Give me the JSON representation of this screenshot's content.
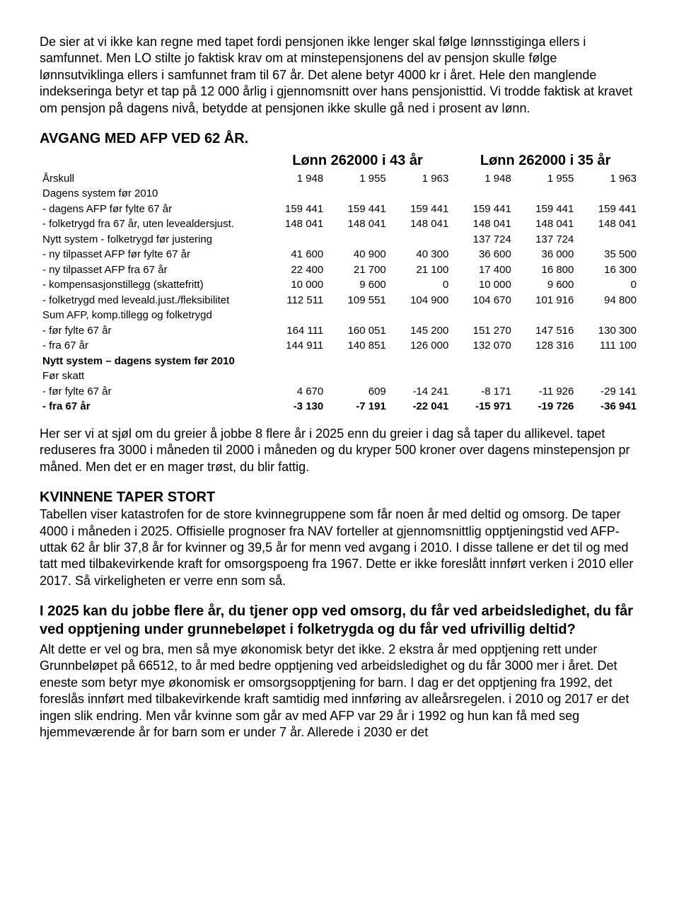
{
  "intro": "De sier at vi ikke kan regne med tapet fordi pensjonen ikke lenger skal følge lønnsstiginga ellers i samfunnet. Men LO stilte jo faktisk krav om at minstepensjonens del av pensjon skulle følge lønnsutviklinga ellers i samfunnet fram til 67 år. Det alene betyr 4000 kr i året. Hele den manglende indekseringa betyr et tap på 12 000 årlig i gjennomsnitt over hans pensjonisttid. Vi trodde faktisk at kravet om pensjon på dagens nivå, betydde at pensjonen ikke skulle gå ned i prosent av lønn.",
  "heading1": "AVGANG MED AFP VED 62 ÅR.",
  "table": {
    "group_left": "Lønn 262000 i 43 år",
    "group_right": "Lønn 262000 i 35 år",
    "years_row": {
      "label": "Årskull",
      "vals": [
        "1 948",
        "1 955",
        "1 963",
        "1 948",
        "1 955",
        "1 963"
      ]
    },
    "rows": [
      {
        "label": "Dagens system før 2010",
        "vals": [
          "",
          "",
          "",
          "",
          "",
          ""
        ],
        "bold": false
      },
      {
        "label": "- dagens AFP før fylte 67 år",
        "vals": [
          "159 441",
          "159 441",
          "159 441",
          "159 441",
          "159 441",
          "159 441"
        ],
        "bold": false
      },
      {
        "label": "- folketrygd fra 67 år, uten levealdersjust.",
        "vals": [
          "148 041",
          "148 041",
          "148 041",
          "148 041",
          "148 041",
          "148 041"
        ],
        "bold": false
      },
      {
        "label": "Nytt system - folketrygd før justering",
        "vals": [
          "",
          "",
          "",
          "137 724",
          "137 724",
          ""
        ],
        "bold": false
      },
      {
        "label": "- ny tilpasset AFP før fylte 67 år",
        "vals": [
          "41 600",
          "40 900",
          "40 300",
          "36 600",
          "36 000",
          "35 500"
        ],
        "bold": false
      },
      {
        "label": "- ny tilpasset AFP fra 67 år",
        "vals": [
          "22 400",
          "21 700",
          "21 100",
          "17 400",
          "16 800",
          "16 300"
        ],
        "bold": false
      },
      {
        "label": "- kompensasjonstillegg (skattefritt)",
        "vals": [
          "10 000",
          "9 600",
          "0",
          "10 000",
          "9 600",
          "0"
        ],
        "bold": false
      },
      {
        "label": "- folketrygd med leveald.just./fleksibilitet",
        "vals": [
          "112 511",
          "109 551",
          "104 900",
          "104 670",
          "101 916",
          "94 800"
        ],
        "bold": false
      },
      {
        "label": "Sum AFP, komp.tillegg og folketrygd",
        "vals": [
          "",
          "",
          "",
          "",
          "",
          ""
        ],
        "bold": false
      },
      {
        "label": "- før fylte 67 år",
        "vals": [
          "164 111",
          "160 051",
          "145 200",
          "151 270",
          "147 516",
          "130 300"
        ],
        "bold": false
      },
      {
        "label": "- fra 67 år",
        "vals": [
          "144 911",
          "140 851",
          "126 000",
          "132 070",
          "128 316",
          "111 100"
        ],
        "bold": false
      },
      {
        "label": "Nytt system – dagens system før 2010",
        "vals": [
          "",
          "",
          "",
          "",
          "",
          ""
        ],
        "bold": true
      },
      {
        "label": "Før skatt",
        "vals": [
          "",
          "",
          "",
          "",
          "",
          ""
        ],
        "bold": false
      },
      {
        "label": "- før fylte 67 år",
        "vals": [
          "4 670",
          "609",
          "-14 241",
          "-8 171",
          "-11 926",
          "-29 141"
        ],
        "bold": false
      },
      {
        "label": "- fra 67 år",
        "vals": [
          "-3 130",
          "-7 191",
          "-22 041",
          "-15 971",
          "-19 726",
          "-36 941"
        ],
        "bold": "all"
      }
    ]
  },
  "after_table": "Her ser vi at sjøl om du greier å jobbe 8 flere år i 2025 enn du greier i dag så taper du allikevel. tapet reduseres fra 3000 i måneden til 2000 i måneden og du kryper 500 kroner over dagens minstepensjon pr måned. Men det er en mager trøst, du blir fattig.",
  "heading2": "KVINNENE TAPER STORT",
  "kvinner_para": "Tabellen viser katastrofen for de store kvinnegruppene som får noen år med deltid og omsorg. De taper 4000 i måneden i 2025. Offisielle prognoser fra NAV forteller at gjennomsnittlig opptjeningstid ved AFP-uttak  62 år blir 37,8 år for kvinner og 39,5 år for menn ved avgang i 2010. I disse tallene er det til og med tatt med tilbakevirkende kraft for omsorgspoeng fra 1967. Dette er ikke foreslått innført verken i 2010 eller 2017. Så virkeligheten er verre enn som så.",
  "bold_q": "I 2025 kan du jobbe flere år, du tjener opp ved omsorg, du får ved arbeidsledighet, du får ved opptjening under grunnebeløpet i folketrygda og du får ved ufrivillig deltid?",
  "final_para": " Alt dette  er vel og bra, men så mye økonomisk betyr det ikke. 2 ekstra år med opptjening rett under Grunnbeløpet på 66512, to år med bedre opptjening ved arbeidsledighet og du får 3000 mer i året. Det eneste som betyr mye økonomisk er omsorgsopptjening for barn. I dag er det opptjening fra 1992, det foreslås innført med tilbakevirkende kraft  samtidig med innføring av alleårsregelen. i 2010 og 2017 er det ingen slik endring. Men vår kvinne som går av med AFP var 29 år i 1992 og hun kan få med seg hjemmeværende år for barn som er under 7 år. Allerede i 2030 er det"
}
